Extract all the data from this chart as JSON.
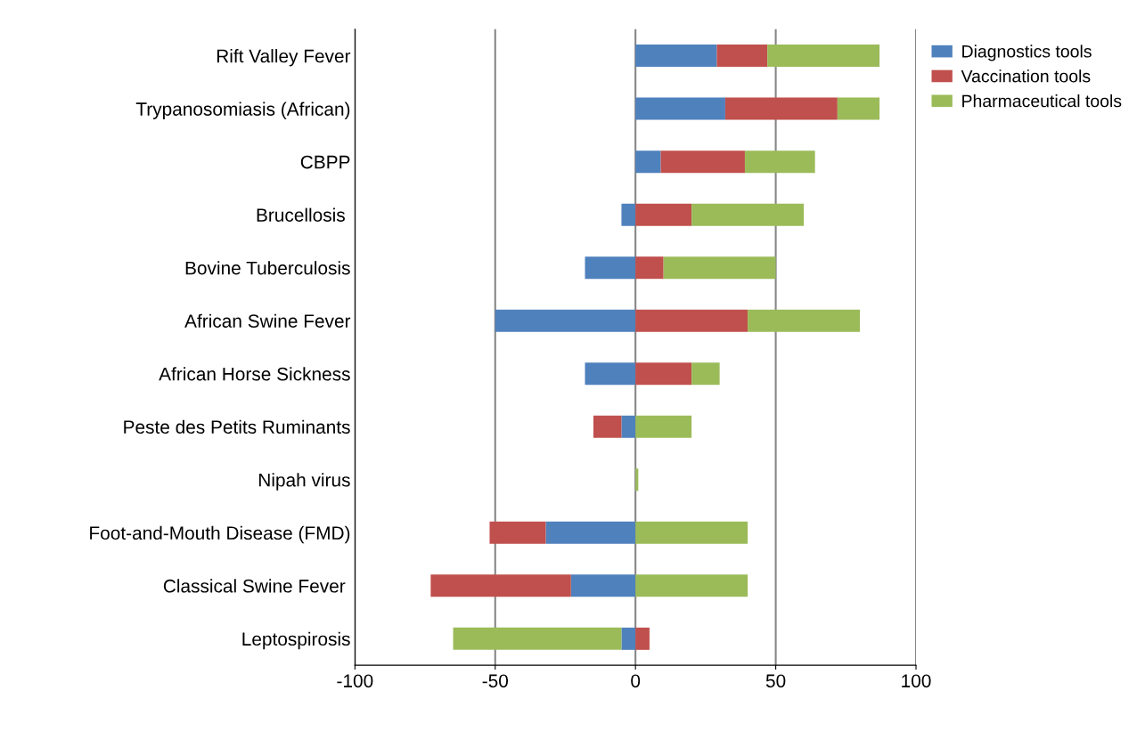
{
  "chart_data": {
    "type": "bar",
    "orientation": "horizontal",
    "stacked": true,
    "categories": [
      "Rift Valley Fever",
      "Trypanosomiasis (African)",
      "CBPP",
      "Brucellosis ",
      "Bovine Tuberculosis",
      "African Swine Fever",
      "African Horse Sickness",
      "Peste des Petits Ruminants",
      "Nipah virus",
      "Foot-and-Mouth Disease (FMD)",
      "Classical Swine Fever ",
      "Leptospirosis"
    ],
    "series": [
      {
        "name": "Diagnostics tools",
        "color": "#4f81bd",
        "values": [
          29,
          32,
          9,
          -5,
          -18,
          -50,
          -18,
          -5,
          0,
          -32,
          -23,
          -5
        ]
      },
      {
        "name": "Vaccination tools",
        "color": "#c0504d",
        "values": [
          18,
          40,
          30,
          20,
          10,
          40,
          20,
          -10,
          0,
          -20,
          -50,
          5
        ]
      },
      {
        "name": "Pharmaceutical tools",
        "color": "#9bbb59",
        "values": [
          40,
          15,
          25,
          40,
          40,
          40,
          10,
          20,
          1,
          40,
          40,
          -60
        ]
      }
    ],
    "xlim": [
      -100,
      100
    ],
    "xticks": [
      -100,
      -50,
      0,
      50,
      100
    ],
    "grid": "x",
    "legend": "right"
  }
}
